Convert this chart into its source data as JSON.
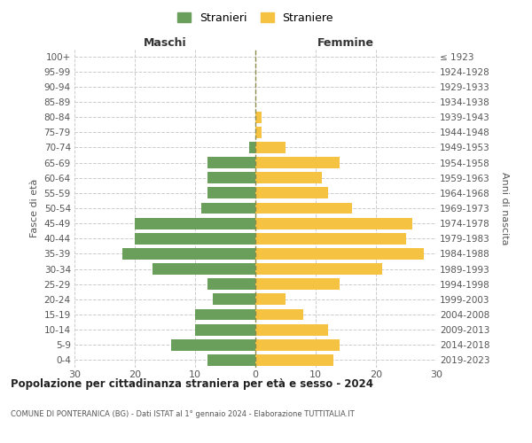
{
  "age_groups": [
    "0-4",
    "5-9",
    "10-14",
    "15-19",
    "20-24",
    "25-29",
    "30-34",
    "35-39",
    "40-44",
    "45-49",
    "50-54",
    "55-59",
    "60-64",
    "65-69",
    "70-74",
    "75-79",
    "80-84",
    "85-89",
    "90-94",
    "95-99",
    "100+"
  ],
  "birth_years": [
    "2019-2023",
    "2014-2018",
    "2009-2013",
    "2004-2008",
    "1999-2003",
    "1994-1998",
    "1989-1993",
    "1984-1988",
    "1979-1983",
    "1974-1978",
    "1969-1973",
    "1964-1968",
    "1959-1963",
    "1954-1958",
    "1949-1953",
    "1944-1948",
    "1939-1943",
    "1934-1938",
    "1929-1933",
    "1924-1928",
    "≤ 1923"
  ],
  "males": [
    8,
    14,
    10,
    10,
    7,
    8,
    17,
    22,
    20,
    20,
    9,
    8,
    8,
    8,
    1,
    0,
    0,
    0,
    0,
    0,
    0
  ],
  "females": [
    13,
    14,
    12,
    8,
    5,
    14,
    21,
    28,
    25,
    26,
    16,
    12,
    11,
    14,
    5,
    1,
    1,
    0,
    0,
    0,
    0
  ],
  "male_color": "#6a9f5b",
  "female_color": "#f5c242",
  "grid_color": "#cccccc",
  "title_main": "Popolazione per cittadinanza straniera per età e sesso - 2024",
  "title_sub": "COMUNE DI PONTERANICA (BG) - Dati ISTAT al 1° gennaio 2024 - Elaborazione TUTTITALIA.IT",
  "xlabel_left": "Maschi",
  "xlabel_right": "Femmine",
  "ylabel_left": "Fasce di età",
  "ylabel_right": "Anni di nascita",
  "legend_male": "Stranieri",
  "legend_female": "Straniere",
  "xlim": 30,
  "background_color": "#ffffff",
  "dashed_line_color": "#8a8a4a"
}
